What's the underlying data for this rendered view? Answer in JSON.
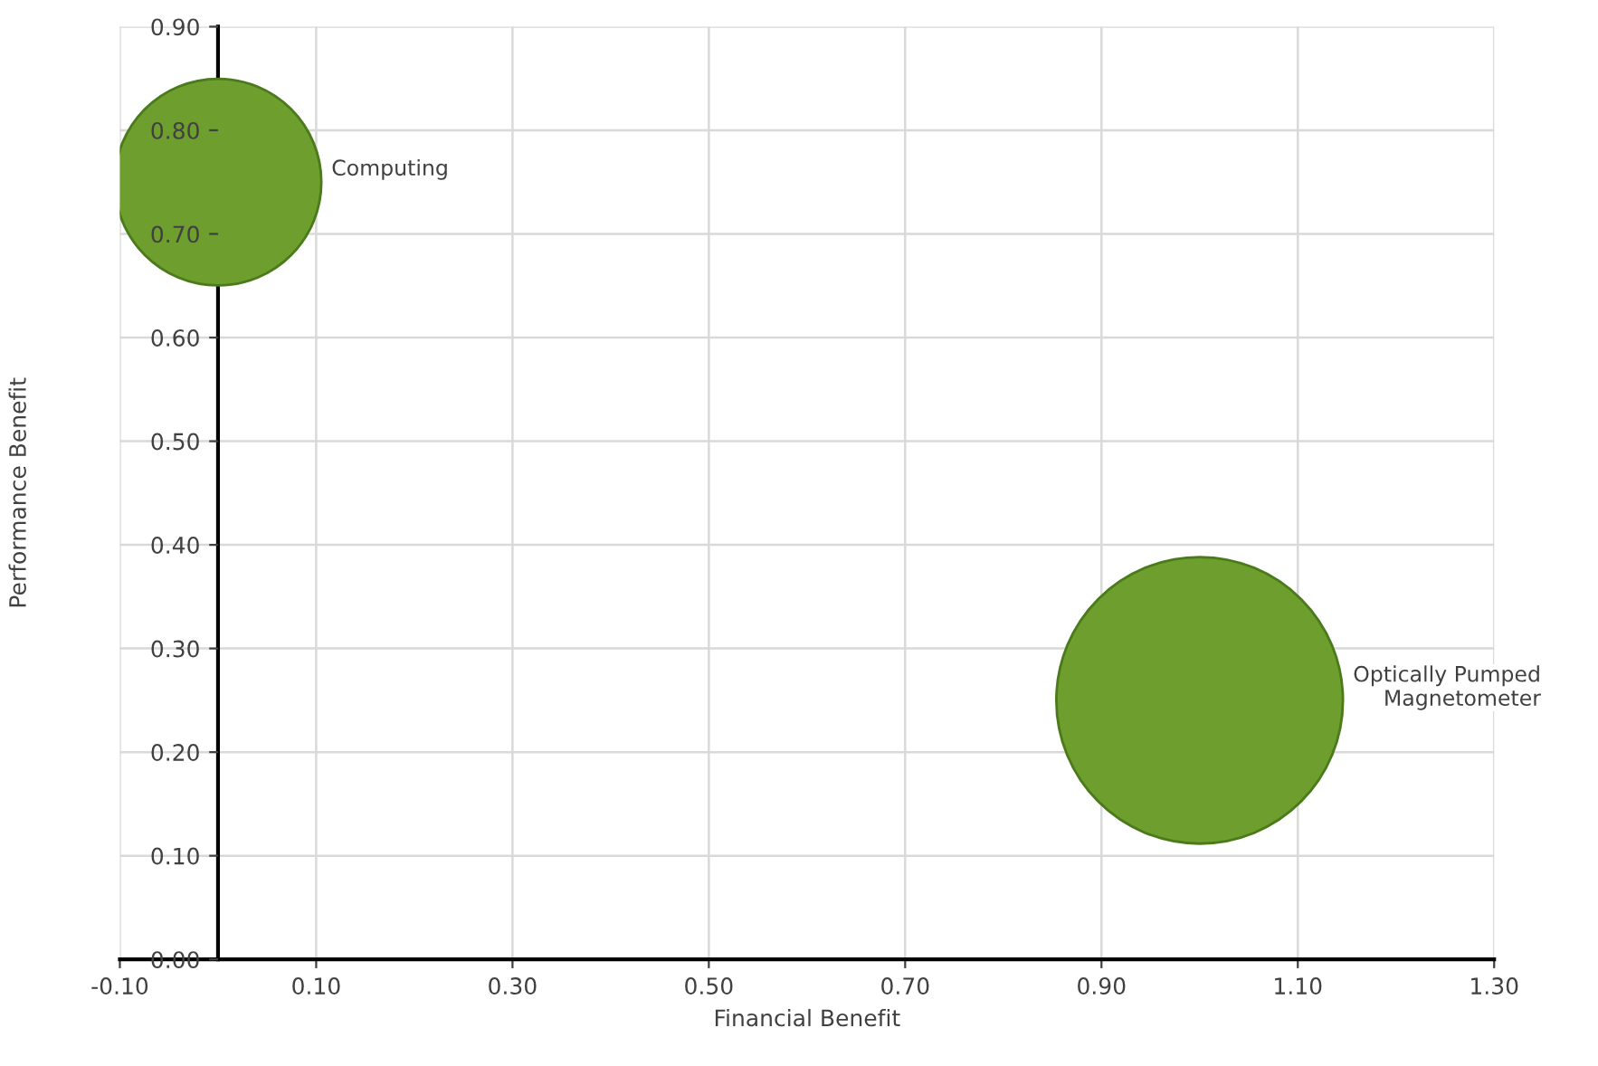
{
  "chart_data": {
    "type": "bubble",
    "xlabel": "Financial Benefit",
    "ylabel": "Performance Benefit",
    "xlim": [
      -0.1,
      1.3
    ],
    "xticks": [
      {
        "value": -0.1,
        "label": "-0.10"
      },
      {
        "value": 0.1,
        "label": "0.10"
      },
      {
        "value": 0.3,
        "label": "0.30"
      },
      {
        "value": 0.5,
        "label": "0.50"
      },
      {
        "value": 0.7,
        "label": "0.70"
      },
      {
        "value": 0.9,
        "label": "0.90"
      },
      {
        "value": 1.1,
        "label": "1.10"
      },
      {
        "value": 1.3,
        "label": "1.30"
      }
    ],
    "ylim": [
      0,
      0.9
    ],
    "yticks": [
      {
        "value": 0,
        "label": "0.00"
      },
      {
        "value": 0.1,
        "label": "0.10"
      },
      {
        "value": 0.2,
        "label": "0.20"
      },
      {
        "value": 0.3,
        "label": "0.30"
      },
      {
        "value": 0.4,
        "label": "0.40"
      },
      {
        "value": 0.5,
        "label": "0.50"
      },
      {
        "value": 0.6,
        "label": "0.60"
      },
      {
        "value": 0.7,
        "label": "0.70"
      },
      {
        "value": 0.8,
        "label": "0.80"
      },
      {
        "value": 0.9,
        "label": "0.90"
      }
    ],
    "grid": true,
    "series": [
      {
        "name": "Computing",
        "color": "#6e9e2e",
        "x": [
          0.0
        ],
        "values": [
          0.75
        ],
        "sizes": [
          0.52
        ]
      },
      {
        "name": "Optically Pumped\nMagnetometer",
        "color": "#6e9e2e",
        "x": [
          1.0
        ],
        "values": [
          0.25
        ],
        "sizes": [
          1
        ]
      }
    ]
  }
}
